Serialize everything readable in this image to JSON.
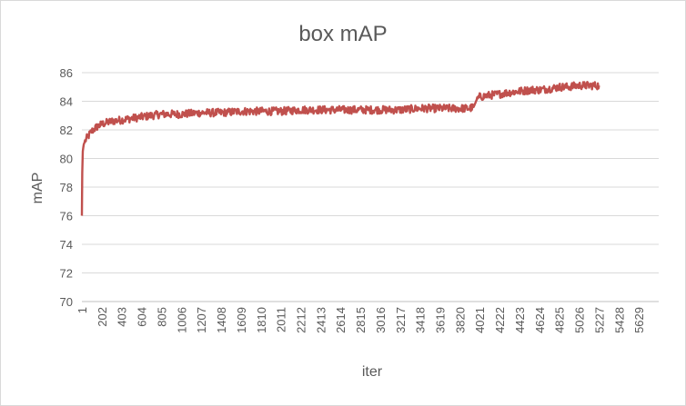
{
  "chart_data": {
    "type": "line",
    "title": "box mAP",
    "xlabel": "iter",
    "ylabel": "mAP",
    "ylim": [
      70,
      86
    ],
    "yticks": [
      70,
      72,
      74,
      76,
      78,
      80,
      82,
      84,
      86
    ],
    "xlim": [
      1,
      5830
    ],
    "xticks": [
      "1",
      "202",
      "403",
      "604",
      "805",
      "1006",
      "1207",
      "1408",
      "1609",
      "1810",
      "2011",
      "2212",
      "2413",
      "2614",
      "2815",
      "3016",
      "3217",
      "3418",
      "3619",
      "3820",
      "4021",
      "4222",
      "4423",
      "4624",
      "4825",
      "5026",
      "5227",
      "5428",
      "5629"
    ],
    "grid": true,
    "legend": "none",
    "color": "#c0504d",
    "series": [
      {
        "x": [
          1,
          5,
          10,
          20,
          40,
          70,
          100,
          150,
          202,
          300,
          403,
          500,
          604,
          700,
          805,
          1006,
          1207,
          1408,
          1609,
          1810,
          2011,
          2212,
          2413,
          2614,
          2815,
          3016,
          3217,
          3418,
          3619,
          3820,
          3920,
          3960,
          3990,
          4021,
          4100,
          4222,
          4300,
          4423,
          4550,
          4624,
          4750,
          4825,
          4900,
          5026,
          5150,
          5227
        ],
        "values": [
          76.0,
          79.0,
          80.5,
          81.0,
          81.3,
          81.6,
          81.9,
          82.2,
          82.4,
          82.6,
          82.7,
          82.8,
          82.9,
          83.0,
          83.1,
          83.1,
          83.2,
          83.2,
          83.3,
          83.3,
          83.3,
          83.4,
          83.4,
          83.4,
          83.4,
          83.4,
          83.4,
          83.5,
          83.5,
          83.5,
          83.5,
          83.6,
          84.1,
          84.3,
          84.4,
          84.5,
          84.6,
          84.7,
          84.8,
          84.8,
          84.9,
          85.0,
          85.0,
          85.1,
          85.1,
          85.1
        ]
      }
    ]
  }
}
